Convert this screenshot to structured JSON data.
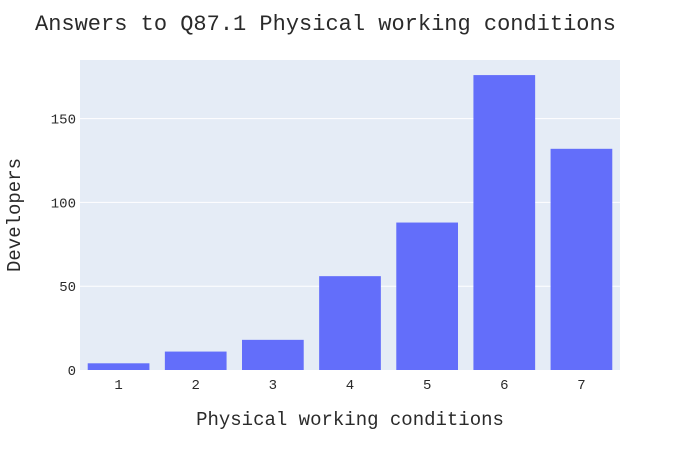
{
  "chart_data": {
    "type": "bar",
    "title": "Answers to Q87.1 Physical working conditions",
    "xlabel": "Physical working conditions",
    "ylabel": "Developers",
    "categories": [
      "1",
      "2",
      "3",
      "4",
      "5",
      "6",
      "7"
    ],
    "values": [
      4,
      11,
      18,
      56,
      88,
      176,
      132
    ],
    "ylim": [
      0,
      185
    ],
    "yticks": [
      0,
      50,
      100,
      150
    ],
    "ytick_labels": [
      "0",
      "50",
      "100",
      "150"
    ],
    "grid": true,
    "legend": "none",
    "colors": {
      "bar": "#636efa",
      "plot_background": "#e5ecf6",
      "gridline": "#ffffff"
    }
  }
}
